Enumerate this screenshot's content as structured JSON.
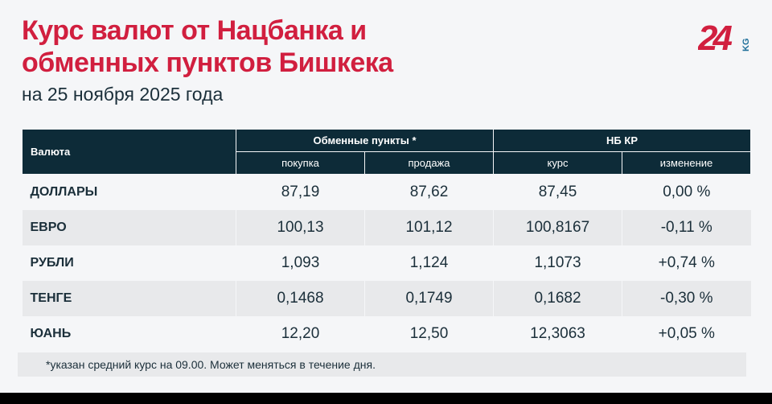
{
  "title_line1": "Курс валют от Нацбанка и",
  "title_line2": "обменных пунктов Бишкека",
  "subtitle": "на 25 ноября 2025 года",
  "logo": {
    "text": "24",
    "suffix": "KG",
    "color": "#d11f3f",
    "suffix_color": "#1f6f9a"
  },
  "table": {
    "header": {
      "currency": "Валюта",
      "exchange": "Обменные пункты *",
      "nb": "НБ КР",
      "buy": "покупка",
      "sell": "продажа",
      "rate": "курс",
      "change": "изменение"
    },
    "rows": [
      {
        "name": "ДОЛЛАРЫ",
        "buy": "87,19",
        "sell": "87,62",
        "rate": "87,45",
        "change": "0,00 %"
      },
      {
        "name": "ЕВРО",
        "buy": "100,13",
        "sell": "101,12",
        "rate": "100,8167",
        "change": "-0,11 %"
      },
      {
        "name": "РУБЛИ",
        "buy": "1,093",
        "sell": "1,124",
        "rate": "1,1073",
        "change": "+0,74 %"
      },
      {
        "name": "ТЕНГЕ",
        "buy": "0,1468",
        "sell": "0,1749",
        "rate": "0,1682",
        "change": "-0,30 %"
      },
      {
        "name": "ЮАНЬ",
        "buy": "12,20",
        "sell": "12,50",
        "rate": "12,3063",
        "change": "+0,05 %"
      }
    ]
  },
  "footnote": "*указан средний курс на 09.00. Может меняться в течение дня.",
  "colors": {
    "title": "#d11f3f",
    "header_bg": "#0d2b38",
    "alt_row": "#e8e9eb"
  }
}
